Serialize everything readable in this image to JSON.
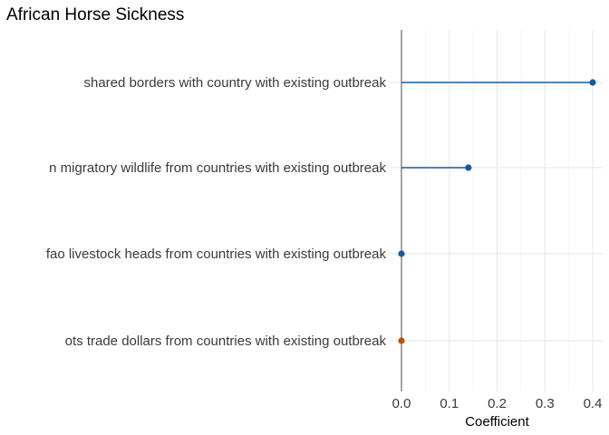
{
  "chart_data": {
    "type": "lollipop",
    "title": "African Horse Sickness",
    "xlabel": "Coefficient",
    "ylabel": "",
    "xlim": [
      0,
      0.4
    ],
    "xticks": [
      "0.0",
      "0.1",
      "0.2",
      "0.3",
      "0.4"
    ],
    "grid": true,
    "legend": "none",
    "categories": [
      "shared borders with country with existing outbreak",
      "n migratory wildlife from countries with existing outbreak",
      "fao livestock heads from countries with existing outbreak",
      "ots trade dollars from countries with existing outbreak"
    ],
    "values": [
      0.4,
      0.14,
      0.0,
      0.0
    ],
    "point_colors": [
      "#0f5c9e",
      "#0f5c9e",
      "#0f5c9e",
      "#c44e0a"
    ]
  }
}
